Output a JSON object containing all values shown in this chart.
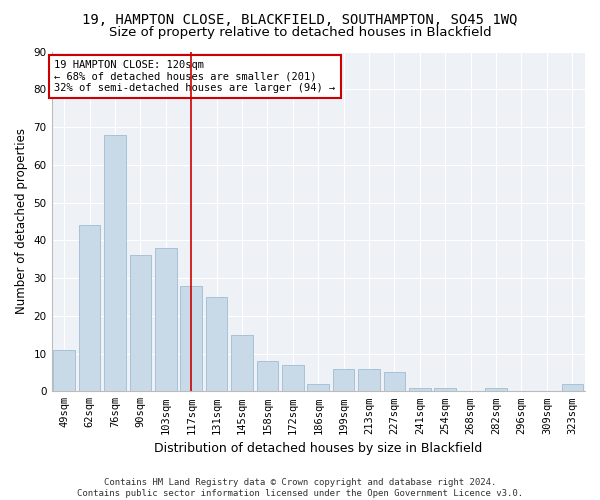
{
  "title": "19, HAMPTON CLOSE, BLACKFIELD, SOUTHAMPTON, SO45 1WQ",
  "subtitle": "Size of property relative to detached houses in Blackfield",
  "xlabel": "Distribution of detached houses by size in Blackfield",
  "ylabel": "Number of detached properties",
  "categories": [
    "49sqm",
    "62sqm",
    "76sqm",
    "90sqm",
    "103sqm",
    "117sqm",
    "131sqm",
    "145sqm",
    "158sqm",
    "172sqm",
    "186sqm",
    "199sqm",
    "213sqm",
    "227sqm",
    "241sqm",
    "254sqm",
    "268sqm",
    "282sqm",
    "296sqm",
    "309sqm",
    "323sqm"
  ],
  "values": [
    11,
    44,
    68,
    36,
    38,
    28,
    25,
    15,
    8,
    7,
    2,
    6,
    6,
    5,
    1,
    1,
    0,
    1,
    0,
    0,
    2
  ],
  "bar_color": "#c8d9e8",
  "bar_edgecolor": "#a0bcd0",
  "vline_index": 5,
  "vline_color": "#cc0000",
  "annotation_lines": [
    "19 HAMPTON CLOSE: 120sqm",
    "← 68% of detached houses are smaller (201)",
    "32% of semi-detached houses are larger (94) →"
  ],
  "annotation_box_edgecolor": "#cc0000",
  "ylim": [
    0,
    90
  ],
  "yticks": [
    0,
    10,
    20,
    30,
    40,
    50,
    60,
    70,
    80,
    90
  ],
  "footer1": "Contains HM Land Registry data © Crown copyright and database right 2024.",
  "footer2": "Contains public sector information licensed under the Open Government Licence v3.0.",
  "bg_color": "#eef2f7",
  "grid_color": "#ffffff",
  "title_fontsize": 10,
  "subtitle_fontsize": 9.5,
  "xlabel_fontsize": 9,
  "ylabel_fontsize": 8.5,
  "tick_fontsize": 7.5,
  "annotation_fontsize": 7.5,
  "footer_fontsize": 6.5
}
